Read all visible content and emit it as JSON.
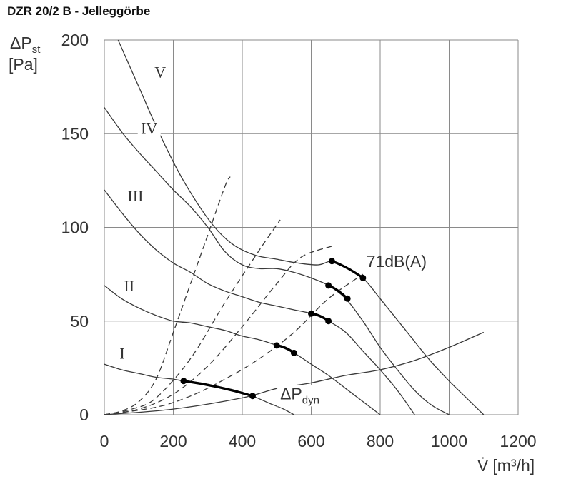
{
  "title": "DZR 20/2 B - Jelleggörbe",
  "chart_data": {
    "type": "line",
    "title": "DZR 20/2 B - Jelleggörbe",
    "x_axis": {
      "label_main": "V̇",
      "label_unit": "[m³/h]",
      "range": [
        0,
        1200
      ],
      "ticks": [
        0,
        200,
        400,
        600,
        800,
        1000,
        1200
      ]
    },
    "y_axis": {
      "label_main": "ΔP",
      "label_sub": "st",
      "label_unit": "[Pa]",
      "range": [
        0,
        200
      ],
      "ticks": [
        0,
        50,
        100,
        150,
        200
      ]
    },
    "grid": true,
    "series": [
      {
        "name": "V",
        "style": "solid",
        "points": [
          [
            40,
            200
          ],
          [
            100,
            175
          ],
          [
            160,
            150
          ],
          [
            220,
            128
          ],
          [
            280,
            110
          ],
          [
            330,
            98
          ],
          [
            380,
            90
          ],
          [
            440,
            85
          ],
          [
            500,
            83
          ],
          [
            560,
            81
          ],
          [
            620,
            80
          ],
          [
            660,
            82
          ],
          [
            700,
            79
          ],
          [
            750,
            73
          ],
          [
            800,
            62
          ],
          [
            870,
            46
          ],
          [
            940,
            30
          ],
          [
            1000,
            18
          ],
          [
            1050,
            9
          ],
          [
            1100,
            0
          ]
        ]
      },
      {
        "name": "IV",
        "style": "solid",
        "points": [
          [
            0,
            164
          ],
          [
            50,
            151
          ],
          [
            100,
            140
          ],
          [
            150,
            130
          ],
          [
            200,
            120
          ],
          [
            250,
            111
          ],
          [
            300,
            100
          ],
          [
            350,
            87
          ],
          [
            400,
            80
          ],
          [
            450,
            78
          ],
          [
            500,
            78
          ],
          [
            550,
            76
          ],
          [
            600,
            73
          ],
          [
            650,
            69
          ],
          [
            700,
            62
          ],
          [
            750,
            50
          ],
          [
            800,
            36
          ],
          [
            850,
            24
          ],
          [
            900,
            13
          ],
          [
            950,
            5
          ],
          [
            1000,
            0
          ]
        ]
      },
      {
        "name": "III",
        "style": "solid",
        "points": [
          [
            0,
            120
          ],
          [
            50,
            108
          ],
          [
            100,
            97
          ],
          [
            150,
            88
          ],
          [
            200,
            81
          ],
          [
            250,
            76
          ],
          [
            300,
            70
          ],
          [
            350,
            66
          ],
          [
            400,
            63
          ],
          [
            450,
            60
          ],
          [
            500,
            58
          ],
          [
            550,
            56
          ],
          [
            600,
            54
          ],
          [
            650,
            50
          ],
          [
            700,
            44
          ],
          [
            750,
            34
          ],
          [
            800,
            24
          ],
          [
            850,
            13
          ],
          [
            900,
            0
          ]
        ]
      },
      {
        "name": "II",
        "style": "solid",
        "points": [
          [
            0,
            69
          ],
          [
            50,
            62
          ],
          [
            100,
            57
          ],
          [
            150,
            53
          ],
          [
            200,
            50
          ],
          [
            250,
            49
          ],
          [
            300,
            47
          ],
          [
            350,
            45
          ],
          [
            400,
            42
          ],
          [
            450,
            40
          ],
          [
            500,
            37
          ],
          [
            550,
            33
          ],
          [
            600,
            27
          ],
          [
            650,
            21
          ],
          [
            700,
            14
          ],
          [
            750,
            7
          ],
          [
            800,
            0
          ]
        ]
      },
      {
        "name": "I",
        "style": "solid",
        "points": [
          [
            0,
            27
          ],
          [
            50,
            24
          ],
          [
            100,
            22
          ],
          [
            150,
            20
          ],
          [
            200,
            19
          ],
          [
            230,
            18
          ],
          [
            280,
            17
          ],
          [
            330,
            15
          ],
          [
            380,
            13
          ],
          [
            430,
            10
          ],
          [
            480,
            6
          ],
          [
            520,
            3
          ],
          [
            550,
            0
          ]
        ]
      },
      {
        "name": "ΔPdyn",
        "style": "solid",
        "points": [
          [
            0,
            0
          ],
          [
            200,
            3
          ],
          [
            400,
            9
          ],
          [
            500,
            14
          ],
          [
            600,
            17
          ],
          [
            700,
            21
          ],
          [
            800,
            24
          ],
          [
            900,
            29
          ],
          [
            1000,
            36
          ],
          [
            1100,
            44
          ]
        ]
      },
      {
        "name": "",
        "style": "dashed",
        "points": [
          [
            0,
            0
          ],
          [
            50,
            2
          ],
          [
            100,
            7
          ],
          [
            150,
            19
          ],
          [
            200,
            44
          ],
          [
            250,
            70
          ],
          [
            300,
            96
          ],
          [
            350,
            122
          ],
          [
            365,
            127
          ]
        ]
      },
      {
        "name": "",
        "style": "dashed",
        "points": [
          [
            0,
            0
          ],
          [
            80,
            3
          ],
          [
            150,
            9
          ],
          [
            250,
            30
          ],
          [
            350,
            60
          ],
          [
            450,
            88
          ],
          [
            510,
            104
          ]
        ]
      },
      {
        "name": "",
        "style": "dashed",
        "points": [
          [
            0,
            0
          ],
          [
            100,
            3
          ],
          [
            200,
            11
          ],
          [
            300,
            26
          ],
          [
            400,
            47
          ],
          [
            500,
            70
          ],
          [
            570,
            84
          ],
          [
            660,
            90
          ]
        ]
      },
      {
        "name": "",
        "style": "dashed",
        "points": [
          [
            0,
            0
          ],
          [
            150,
            4
          ],
          [
            250,
            10
          ],
          [
            350,
            19
          ],
          [
            450,
            30
          ],
          [
            550,
            44
          ],
          [
            650,
            62
          ],
          [
            750,
            75
          ]
        ]
      }
    ],
    "markers": [
      {
        "name": "71dB(A)",
        "points": [
          [
            660,
            82
          ],
          [
            750,
            73
          ]
        ]
      },
      {
        "name": "",
        "points": [
          [
            650,
            69
          ],
          [
            705,
            62
          ]
        ]
      },
      {
        "name": "",
        "points": [
          [
            600,
            54
          ],
          [
            650,
            50
          ]
        ]
      },
      {
        "name": "",
        "points": [
          [
            500,
            37
          ],
          [
            550,
            33
          ]
        ]
      },
      {
        "name": "",
        "points": [
          [
            230,
            18
          ],
          [
            430,
            10
          ]
        ]
      }
    ],
    "series_labels": [
      {
        "text": "V",
        "x": 162,
        "y": 180
      },
      {
        "text": "IV",
        "x": 130,
        "y": 150
      },
      {
        "text": "III",
        "x": 90,
        "y": 114
      },
      {
        "text": "II",
        "x": 72,
        "y": 66
      },
      {
        "text": "I",
        "x": 52,
        "y": 30
      }
    ],
    "annotations": {
      "db": {
        "text": "71dB(A)",
        "x": 760,
        "y": 82
      },
      "dyn": {
        "text_main": "ΔP",
        "text_sub": "dyn",
        "x": 510,
        "y": 9
      }
    }
  }
}
